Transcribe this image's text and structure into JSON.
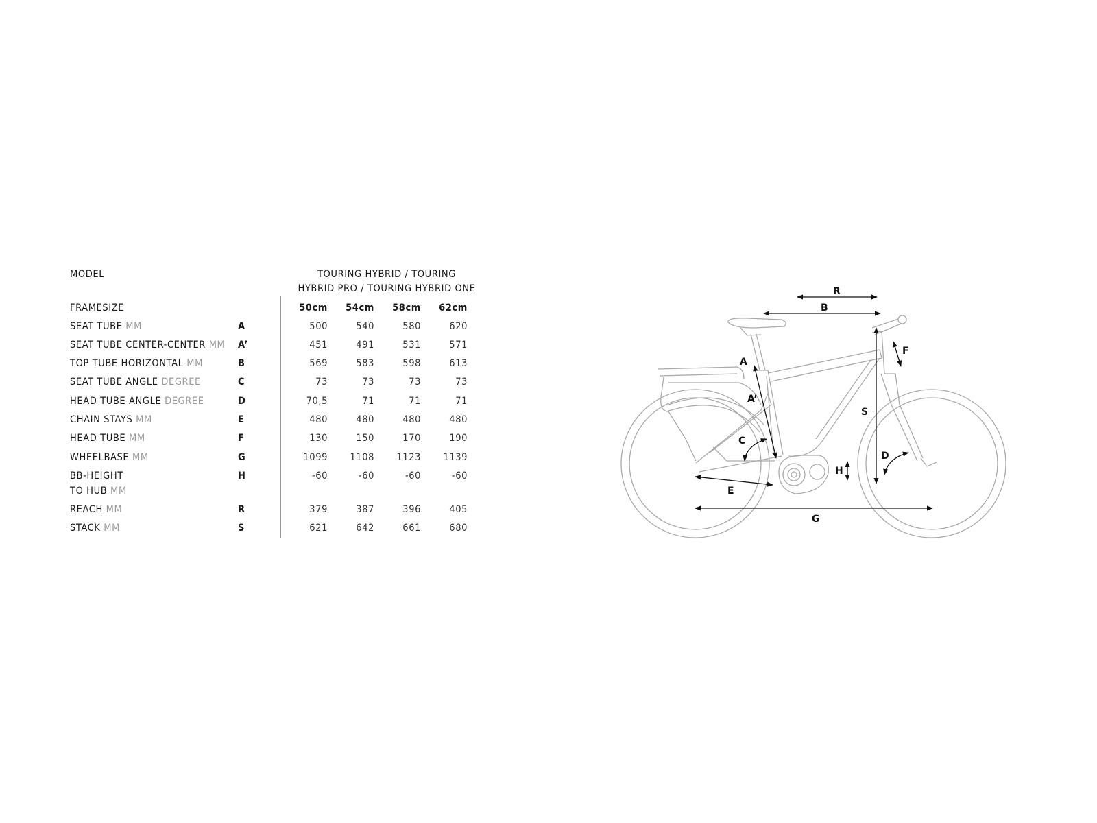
{
  "table": {
    "model_label": "MODEL",
    "model_name_line1": "TOURING HYBRID / TOURING",
    "model_name_line2": "HYBRID PRO / TOURING HYBRID ONE",
    "framesize_label": "FRAMESIZE",
    "sizes": [
      "50cm",
      "54cm",
      "58cm",
      "62cm"
    ],
    "rows": [
      {
        "label": "SEAT TUBE",
        "unit": "MM",
        "letter": "A",
        "values": [
          "500",
          "540",
          "580",
          "620"
        ]
      },
      {
        "label": "SEAT TUBE CENTER-CENTER",
        "unit": "MM",
        "letter": "A’",
        "values": [
          "451",
          "491",
          "531",
          "571"
        ]
      },
      {
        "label": "TOP TUBE HORIZONTAL",
        "unit": "MM",
        "letter": "B",
        "values": [
          "569",
          "583",
          "598",
          "613"
        ]
      },
      {
        "label": "SEAT TUBE ANGLE",
        "unit": "DEGREE",
        "letter": "C",
        "values": [
          "73",
          "73",
          "73",
          "73"
        ]
      },
      {
        "label": "HEAD TUBE ANGLE",
        "unit": "DEGREE",
        "letter": "D",
        "values": [
          "70,5",
          "71",
          "71",
          "71"
        ]
      },
      {
        "label": "CHAIN STAYS",
        "unit": "MM",
        "letter": "E",
        "values": [
          "480",
          "480",
          "480",
          "480"
        ]
      },
      {
        "label": "HEAD TUBE",
        "unit": "MM",
        "letter": "F",
        "values": [
          "130",
          "150",
          "170",
          "190"
        ]
      },
      {
        "label": "WHEELBASE",
        "unit": "MM",
        "letter": "G",
        "values": [
          "1099",
          "1108",
          "1123",
          "1139"
        ]
      },
      {
        "label": "BB-HEIGHT",
        "label2": "TO HUB",
        "unit": "MM",
        "letter": "H",
        "values": [
          "-60",
          "-60",
          "-60",
          "-60"
        ]
      },
      {
        "label": "REACH",
        "unit": "MM",
        "letter": "R",
        "values": [
          "379",
          "387",
          "396",
          "405"
        ]
      },
      {
        "label": "STACK",
        "unit": "MM",
        "letter": "S",
        "values": [
          "621",
          "642",
          "661",
          "680"
        ]
      }
    ]
  },
  "diagram": {
    "labels": {
      "R": "R",
      "B": "B",
      "A": "A",
      "A2": "A’",
      "F": "F",
      "S": "S",
      "C": "C",
      "D": "D",
      "H": "H",
      "E": "E",
      "G": "G"
    },
    "line_color": "#aaaaaa",
    "arrow_color": "#111111"
  }
}
